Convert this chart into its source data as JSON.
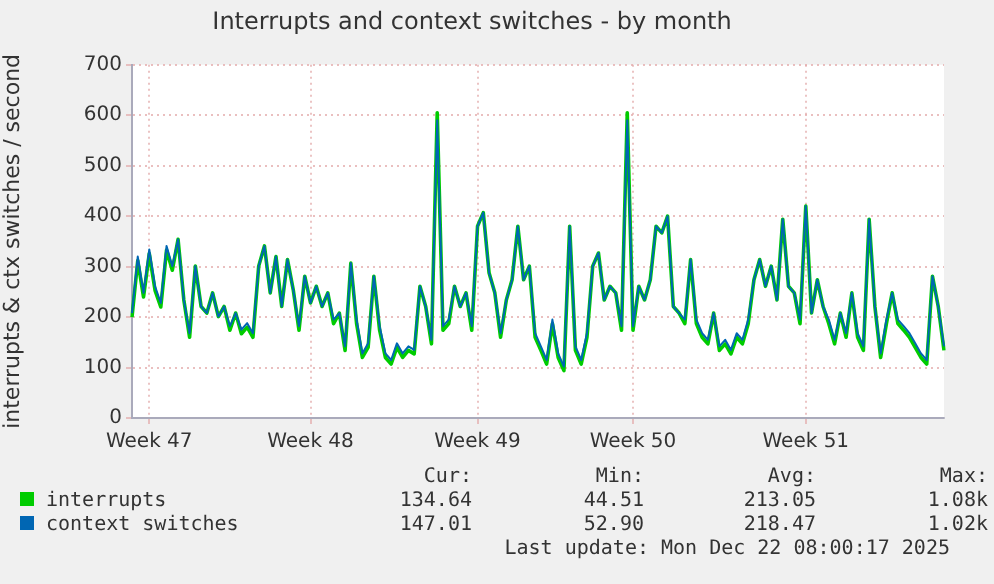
{
  "chart_data": {
    "type": "line",
    "title": "Interrupts and context switches - by month",
    "ylabel": "interrupts & ctx switches / second",
    "categories": [
      null,
      null,
      null,
      "Week 47",
      null,
      null,
      null,
      null,
      null,
      null,
      null,
      null,
      null,
      null,
      null,
      null,
      null,
      null,
      null,
      null,
      null,
      null,
      null,
      null,
      null,
      null,
      null,
      null,
      null,
      null,
      null,
      "Week 48",
      null,
      null,
      null,
      null,
      null,
      null,
      null,
      null,
      null,
      null,
      null,
      null,
      null,
      null,
      null,
      null,
      null,
      null,
      null,
      null,
      null,
      null,
      null,
      null,
      null,
      null,
      null,
      null,
      "Week 49",
      null,
      null,
      null,
      null,
      null,
      null,
      null,
      null,
      null,
      null,
      null,
      null,
      null,
      null,
      null,
      null,
      null,
      null,
      null,
      null,
      null,
      null,
      null,
      null,
      null,
      null,
      "Week 50",
      null,
      null,
      null,
      null,
      null,
      null,
      null,
      null,
      null,
      null,
      null,
      null,
      null,
      null,
      null,
      null,
      null,
      null,
      null,
      null,
      null,
      null,
      null,
      null,
      null,
      null,
      null,
      null,
      null,
      "Week 51",
      null,
      null,
      null,
      null,
      null,
      null,
      null,
      null,
      null,
      null,
      null,
      null,
      null,
      null,
      null,
      null,
      null,
      null,
      null,
      null,
      null,
      null,
      null,
      null
    ],
    "series": [
      {
        "name": "interrupts",
        "color": "#00cc00",
        "values": [
          200,
          312,
          240,
          326,
          253,
          220,
          333,
          293,
          354,
          234,
          160,
          301,
          221,
          208,
          248,
          201,
          221,
          174,
          208,
          167,
          180,
          160,
          301,
          341,
          248,
          320,
          221,
          314,
          254,
          174,
          281,
          228,
          261,
          221,
          248,
          187,
          208,
          134,
          307,
          187,
          120,
          140,
          281,
          174,
          120,
          107,
          140,
          120,
          134,
          127,
          261,
          221,
          147,
          605,
          174,
          187,
          261,
          221,
          248,
          174,
          380,
          407,
          288,
          248,
          160,
          234,
          274,
          380,
          274,
          301,
          160,
          134,
          107,
          187,
          120,
          94,
          380,
          134,
          107,
          160,
          301,
          327,
          234,
          261,
          248,
          174,
          605,
          174,
          261,
          234,
          274,
          380,
          367,
          400,
          221,
          208,
          187,
          314,
          187,
          160,
          147,
          208,
          134,
          147,
          127,
          160,
          147,
          187,
          274,
          314,
          261,
          301,
          234,
          394,
          261,
          248,
          187,
          420,
          208,
          274,
          221,
          187,
          147,
          208,
          160,
          248,
          160,
          134,
          394,
          221,
          120,
          187,
          248,
          187,
          174,
          160,
          140,
          120,
          107,
          281,
          221,
          134
        ]
      },
      {
        "name": "context switches",
        "color": "#0066b3",
        "values": [
          208,
          320,
          248,
          334,
          261,
          228,
          341,
          301,
          354,
          234,
          168,
          301,
          221,
          208,
          248,
          201,
          221,
          182,
          208,
          175,
          188,
          168,
          301,
          341,
          248,
          320,
          221,
          314,
          254,
          182,
          281,
          228,
          261,
          221,
          248,
          195,
          208,
          142,
          307,
          195,
          128,
          148,
          281,
          182,
          128,
          115,
          148,
          128,
          142,
          135,
          261,
          221,
          155,
          590,
          182,
          195,
          261,
          221,
          248,
          182,
          380,
          407,
          288,
          248,
          168,
          234,
          274,
          380,
          274,
          301,
          168,
          142,
          115,
          195,
          128,
          102,
          380,
          142,
          115,
          168,
          301,
          327,
          234,
          261,
          248,
          182,
          590,
          182,
          261,
          234,
          274,
          380,
          367,
          400,
          221,
          208,
          195,
          314,
          195,
          168,
          155,
          208,
          142,
          155,
          135,
          168,
          155,
          195,
          274,
          314,
          261,
          301,
          234,
          394,
          261,
          248,
          195,
          420,
          208,
          274,
          221,
          195,
          155,
          208,
          168,
          248,
          168,
          142,
          394,
          221,
          128,
          195,
          248,
          195,
          182,
          168,
          148,
          128,
          115,
          281,
          221,
          142
        ]
      }
    ],
    "ylim": [
      0,
      700
    ],
    "yticks": [
      0,
      100,
      200,
      300,
      400,
      500,
      600,
      700
    ],
    "grid": true,
    "legend": "bottom",
    "marker": "none",
    "line_style": "solid",
    "annotations": [
      "Cur:",
      "Min:",
      "Avg:",
      "Max:",
      "134.64",
      "44.51",
      "213.05",
      "1.08k",
      "147.01",
      "52.90",
      "218.47",
      "1.02k",
      "Last update: Mon Dec 22 08:00:17 2025"
    ]
  }
}
